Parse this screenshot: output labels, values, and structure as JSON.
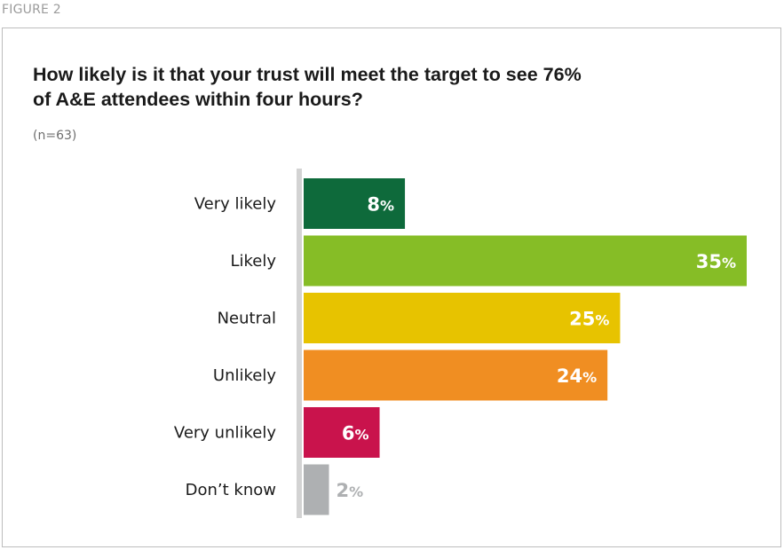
{
  "figure_label": "FIGURE 2",
  "colors": {
    "very_likely": "#0e6a3b",
    "likely": "#86bd26",
    "neutral": "#e7c300",
    "unlikely": "#f08e22",
    "very_unlikely": "#c9134c",
    "dont_know": "#aeb0b2",
    "axis": "#d3d3d3"
  },
  "chart_data": {
    "type": "bar",
    "orientation": "horizontal",
    "title": "How likely is it that your trust will meet the target to see 76% of A&E attendees within four hours?",
    "subtitle": "(n=63)",
    "categories": [
      "Very likely",
      "Likely",
      "Neutral",
      "Unlikely",
      "Very unlikely",
      "Don’t know"
    ],
    "values": [
      8,
      35,
      25,
      24,
      6,
      2
    ],
    "unit": "%",
    "bar_colors": [
      "#0e6a3b",
      "#86bd26",
      "#e7c300",
      "#f08e22",
      "#c9134c",
      "#aeb0b2"
    ],
    "value_label_colors": [
      "#ffffff",
      "#ffffff",
      "#ffffff",
      "#ffffff",
      "#ffffff",
      "#aeb0b2"
    ],
    "xlim": [
      0,
      35
    ],
    "grid": false,
    "legend": "none"
  }
}
